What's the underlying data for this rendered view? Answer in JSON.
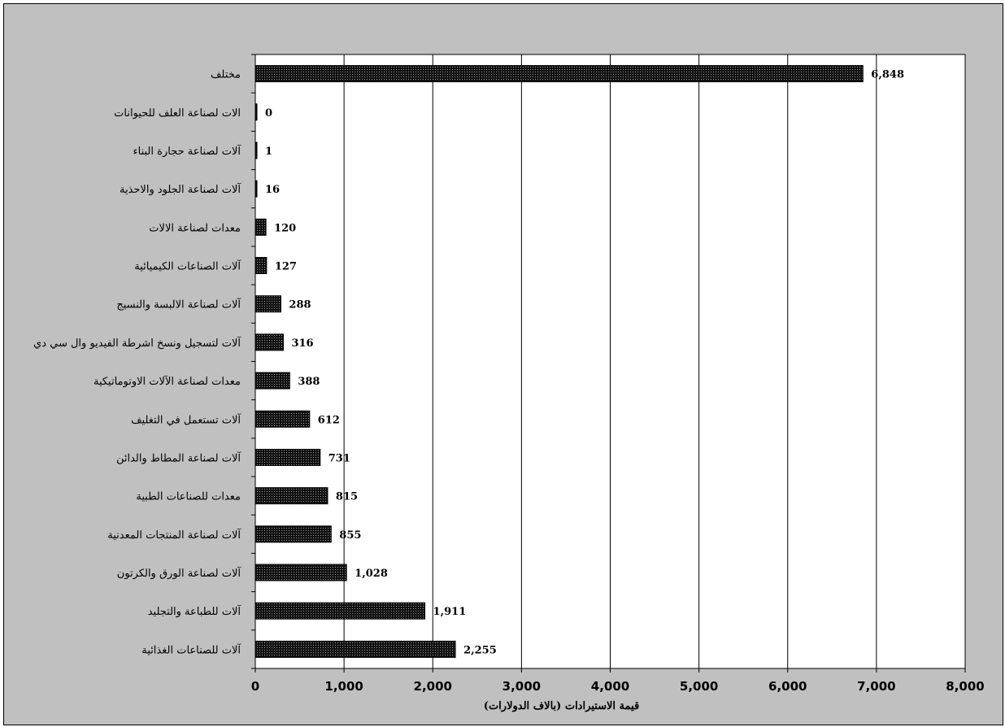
{
  "chart_data": {
    "type": "bar",
    "orientation": "horizontal",
    "categories": [
      "مختلف",
      "الات لصناعة العلف للحيوانات",
      "آلات لصناعة حجارة البناء",
      "آلات لصناعة الجلود والاحذية",
      "معدات لصناعة الالات",
      "آلات الصناعات الكيميائية",
      "آلات لصناعة الالبسة والنسيج",
      "آلات لتسجيل ونسخ اشرطة الفيديو وال سي دي",
      "معدات لصناعة الآلات الاوتوماتيكية",
      "آلات تستعمل في التغليف",
      "آلات لصناعة المطاط والدائن",
      "معدات للصناعات الطبية",
      "آلات لصناعة المنتجات المعدنية",
      "آلات لصناعة الورق والكرتون",
      "آلات للطباعة والتجليد",
      "آلات للصناعات الغذائية"
    ],
    "values": [
      6848,
      0,
      1,
      16,
      120,
      127,
      288,
      316,
      388,
      612,
      731,
      815,
      855,
      1028,
      1911,
      2255
    ],
    "value_labels": [
      "6,848",
      "0",
      "1",
      "16",
      "120",
      "127",
      "288",
      "316",
      "388",
      "612",
      "731",
      "815",
      "855",
      "1,028",
      "1,911",
      "2,255"
    ],
    "x_ticks": [
      "0",
      "1,000",
      "2,000",
      "3,000",
      "4,000",
      "5,000",
      "6,000",
      "7,000",
      "8,000"
    ],
    "xlim": [
      0,
      8000
    ],
    "xlabel": "قيمة الاستيرادات (بالاف الدولارات)",
    "title": "",
    "grid": "vertical",
    "bar_color": "#1a1a1a",
    "background": "#c0c0c0",
    "plot_background": "#ffffff"
  }
}
